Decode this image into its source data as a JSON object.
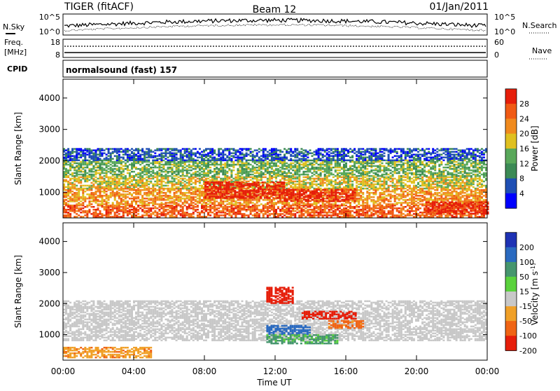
{
  "header": {
    "radar_title": "TIGER (fitACF)",
    "beam": "Beam 12",
    "date": "01/Jan/2011"
  },
  "strips": {
    "nsky_label": "N.Sky",
    "nsky_tick_top": "10^5",
    "nsky_tick_bottom": "10^0",
    "nsearch_label": "N.Search",
    "nsearch_tick_top": "10^5",
    "nsearch_tick_bottom": "10^0",
    "freq_label": "Freq.",
    "freq_unit": "[MHz]",
    "freq_tick_top": "18",
    "freq_tick_bottom": "8",
    "nave_label": "Nave",
    "nave_tick_top": "60",
    "nave_tick_bottom": "0",
    "cpid_label": "CPID",
    "cpid_value": "normalsound (fast) 157"
  },
  "chart_data": [
    {
      "type": "heatmap",
      "name": "power",
      "xlabel": "Time UT",
      "ylabel": "Slant Range [km]",
      "x_ticks": [
        "00:00",
        "04:00",
        "08:00",
        "12:00",
        "16:00",
        "20:00",
        "00:00"
      ],
      "x_range_hours": [
        0,
        24
      ],
      "y_ticks": [
        1000,
        2000,
        3000,
        4000
      ],
      "y_range": [
        180,
        4600
      ],
      "colorbar": {
        "label": "Power [dB]",
        "ticks": [
          "4",
          "8",
          "12",
          "16",
          "20",
          "24",
          "28"
        ],
        "range": [
          0,
          32
        ],
        "colors": [
          "#0000ff",
          "#1f4fb4",
          "#3c8a55",
          "#59a85a",
          "#e0c020",
          "#f08a1e",
          "#f05a14",
          "#e61e0a"
        ]
      },
      "bands": [
        {
          "t0": 0.0,
          "t1": 24.0,
          "r0": 200,
          "r1": 600,
          "level": 6
        },
        {
          "t0": 0.0,
          "t1": 24.0,
          "r0": 600,
          "r1": 1100,
          "level": 5
        },
        {
          "t0": 0.0,
          "t1": 24.0,
          "r0": 1100,
          "r1": 1500,
          "level": 4
        },
        {
          "t0": 0.0,
          "t1": 24.0,
          "r0": 1500,
          "r1": 2000,
          "level": 3
        },
        {
          "t0": 0.0,
          "t1": 24.0,
          "r0": 2000,
          "r1": 2400,
          "level": 1
        },
        {
          "t0": 8.0,
          "t1": 12.5,
          "r0": 800,
          "r1": 1300,
          "level": 7
        },
        {
          "t0": 12.5,
          "t1": 16.5,
          "r0": 700,
          "r1": 1100,
          "level": 7
        },
        {
          "t0": 20.5,
          "t1": 24.0,
          "r0": 300,
          "r1": 700,
          "level": 7
        }
      ]
    },
    {
      "type": "heatmap",
      "name": "velocity",
      "xlabel": "Time UT",
      "ylabel": "Slant Range [km]",
      "x_ticks": [
        "00:00",
        "04:00",
        "08:00",
        "12:00",
        "16:00",
        "20:00",
        "00:00"
      ],
      "x_range_hours": [
        0,
        24
      ],
      "y_ticks": [
        1000,
        2000,
        3000,
        4000
      ],
      "y_range": [
        180,
        4600
      ],
      "colorbar": {
        "label": "Velocity [m s^-1]",
        "ticks": [
          "200",
          "100",
          "50",
          "15",
          "-15",
          "-50",
          "-100",
          "-200"
        ],
        "range": [
          -250,
          250
        ],
        "colors": [
          "#1e32b4",
          "#2a6ac0",
          "#46966e",
          "#5ad23c",
          "#c8c8c8",
          "#f0a028",
          "#f06414",
          "#e61e0a"
        ]
      },
      "bands": [
        {
          "t0": 0.0,
          "t1": 24.0,
          "r0": 800,
          "r1": 2100,
          "value": 0
        },
        {
          "t0": 0.0,
          "t1": 5.0,
          "r0": 250,
          "r1": 600,
          "value": -40
        },
        {
          "t0": 11.5,
          "t1": 14.0,
          "r0": 1000,
          "r1": 1300,
          "value": 120
        },
        {
          "t0": 11.5,
          "t1": 15.5,
          "r0": 700,
          "r1": 1000,
          "value": 40
        },
        {
          "t0": 13.5,
          "t1": 16.5,
          "r0": 1500,
          "r1": 1750,
          "value": -220
        },
        {
          "t0": 11.5,
          "t1": 13.0,
          "r0": 2000,
          "r1": 2500,
          "value": -200
        },
        {
          "t0": 15.0,
          "t1": 17.0,
          "r0": 1200,
          "r1": 1450,
          "value": -60
        }
      ]
    }
  ]
}
